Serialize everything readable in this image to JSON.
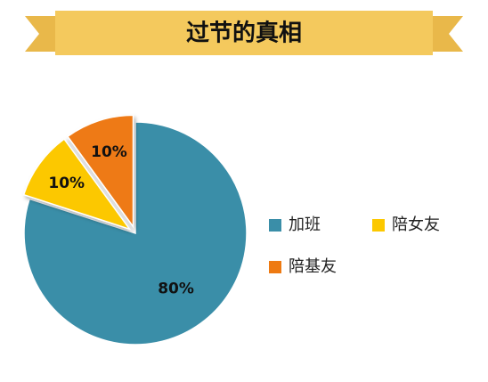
{
  "chart_data": {
    "type": "pie",
    "title": "过节的真相",
    "categories": [
      "加班",
      "陪女友",
      "陪基友"
    ],
    "values": [
      80,
      10,
      10
    ],
    "value_labels": [
      "80%",
      "10%",
      "10%"
    ],
    "colors": [
      "#3a8ea8",
      "#fcc800",
      "#ee7a12"
    ],
    "exploded": [
      false,
      true,
      true
    ]
  }
}
